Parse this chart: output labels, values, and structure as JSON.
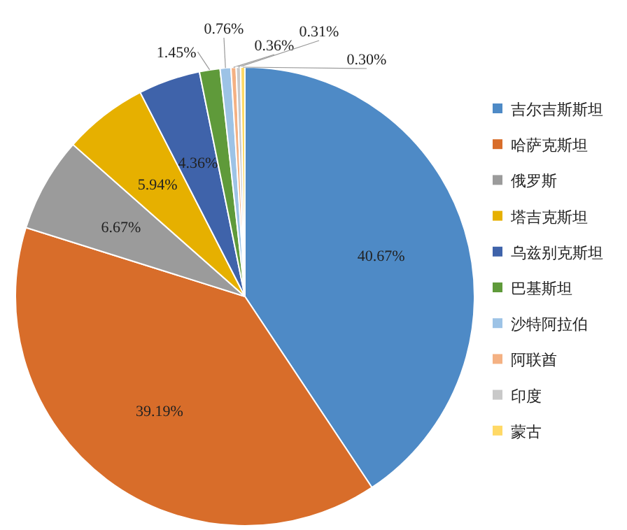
{
  "chart_data": {
    "type": "pie",
    "categories": [
      "吉尔吉斯斯坦",
      "哈萨克斯坦",
      "俄罗斯",
      "塔吉克斯坦",
      "乌兹别克斯坦",
      "巴基斯坦",
      "沙特阿拉伯",
      "阿联酋",
      "印度",
      "蒙古"
    ],
    "values": [
      40.67,
      39.19,
      6.67,
      5.94,
      4.36,
      1.45,
      0.76,
      0.36,
      0.31,
      0.3
    ],
    "colors": [
      "#4e8ac6",
      "#d86d2a",
      "#9b9b9b",
      "#e6b000",
      "#3f63aa",
      "#5f9a3a",
      "#9dc3e6",
      "#f4b183",
      "#c9c9c9",
      "#ffd966"
    ],
    "value_labels": [
      "40.67%",
      "39.19%",
      "6.67%",
      "5.94%",
      "4.36%",
      "1.45%",
      "0.76%",
      "0.36%",
      "0.31%",
      "0.30%"
    ],
    "legend": "right"
  }
}
